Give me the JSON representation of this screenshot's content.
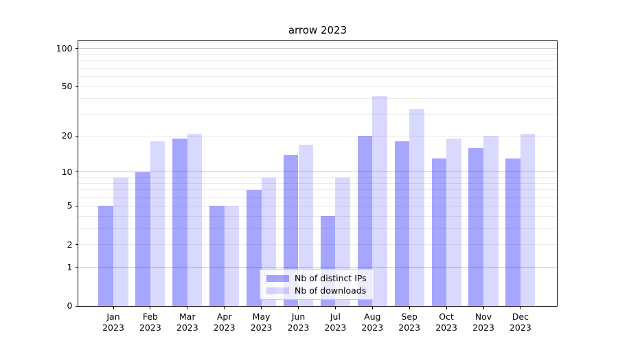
{
  "chart_data": {
    "type": "bar",
    "title": "arrow 2023",
    "categories": [
      "Jan",
      "Feb",
      "Mar",
      "Apr",
      "May",
      "Jun",
      "Jul",
      "Aug",
      "Sep",
      "Oct",
      "Nov",
      "Dec"
    ],
    "year_label": "2023",
    "series": [
      {
        "name": "Nb of distinct IPs",
        "color": "rgba(0,0,255,0.35)",
        "values": [
          5,
          10,
          19,
          5,
          7,
          14,
          4,
          20,
          18,
          13,
          16,
          13
        ]
      },
      {
        "name": "Nb of downloads",
        "color": "rgba(0,0,255,0.15)",
        "values": [
          9,
          18,
          21,
          5,
          9,
          17,
          9,
          42,
          33,
          19,
          20,
          21
        ]
      }
    ],
    "xlabel": "",
    "ylabel": "",
    "scale": "log1p",
    "ylim": [
      0,
      114
    ],
    "yticks": [
      0,
      1,
      2,
      5,
      10,
      20,
      50,
      100
    ],
    "major_gridlines": [
      1,
      10,
      100
    ],
    "minor_gridlines": [
      2,
      3,
      4,
      5,
      6,
      7,
      8,
      9,
      20,
      30,
      40,
      50,
      60,
      70,
      80,
      90
    ],
    "grid": true,
    "legend_position": "lower center"
  },
  "colors": {
    "major_grid": "#c9c9c9",
    "minor_grid": "#ebebeb",
    "spine": "#000000",
    "text": "#000000",
    "background": "#ffffff"
  }
}
